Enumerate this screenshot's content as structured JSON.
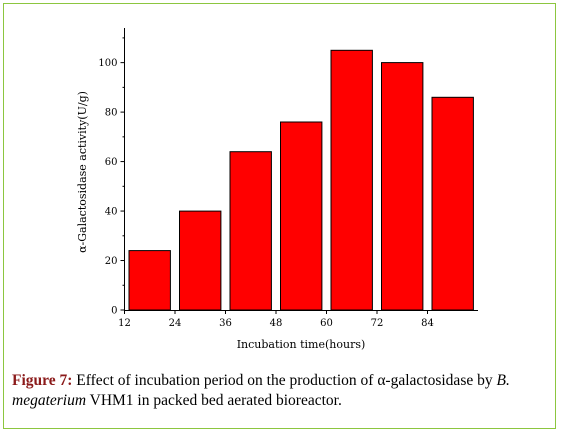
{
  "chart_data": {
    "type": "bar",
    "categories": [
      "12",
      "24",
      "36",
      "48",
      "60",
      "72",
      "84"
    ],
    "values": [
      24,
      40,
      64,
      76,
      105,
      100,
      86
    ],
    "xlabel": "Incubation time(hours)",
    "ylabel": "α-Galactosidase activity(U/g)",
    "yticks": [
      "0",
      "20",
      "40",
      "60",
      "80",
      "100"
    ],
    "ylim": [
      0,
      114
    ],
    "bar_color": "#ff0000",
    "grid": false
  },
  "caption": {
    "label": "Figure 7:",
    "part1": " Effect of incubation period on the production of α-galactosidase by ",
    "organism": "B. megaterium",
    "part2": " VHM1 in packed bed aerated bioreactor."
  }
}
